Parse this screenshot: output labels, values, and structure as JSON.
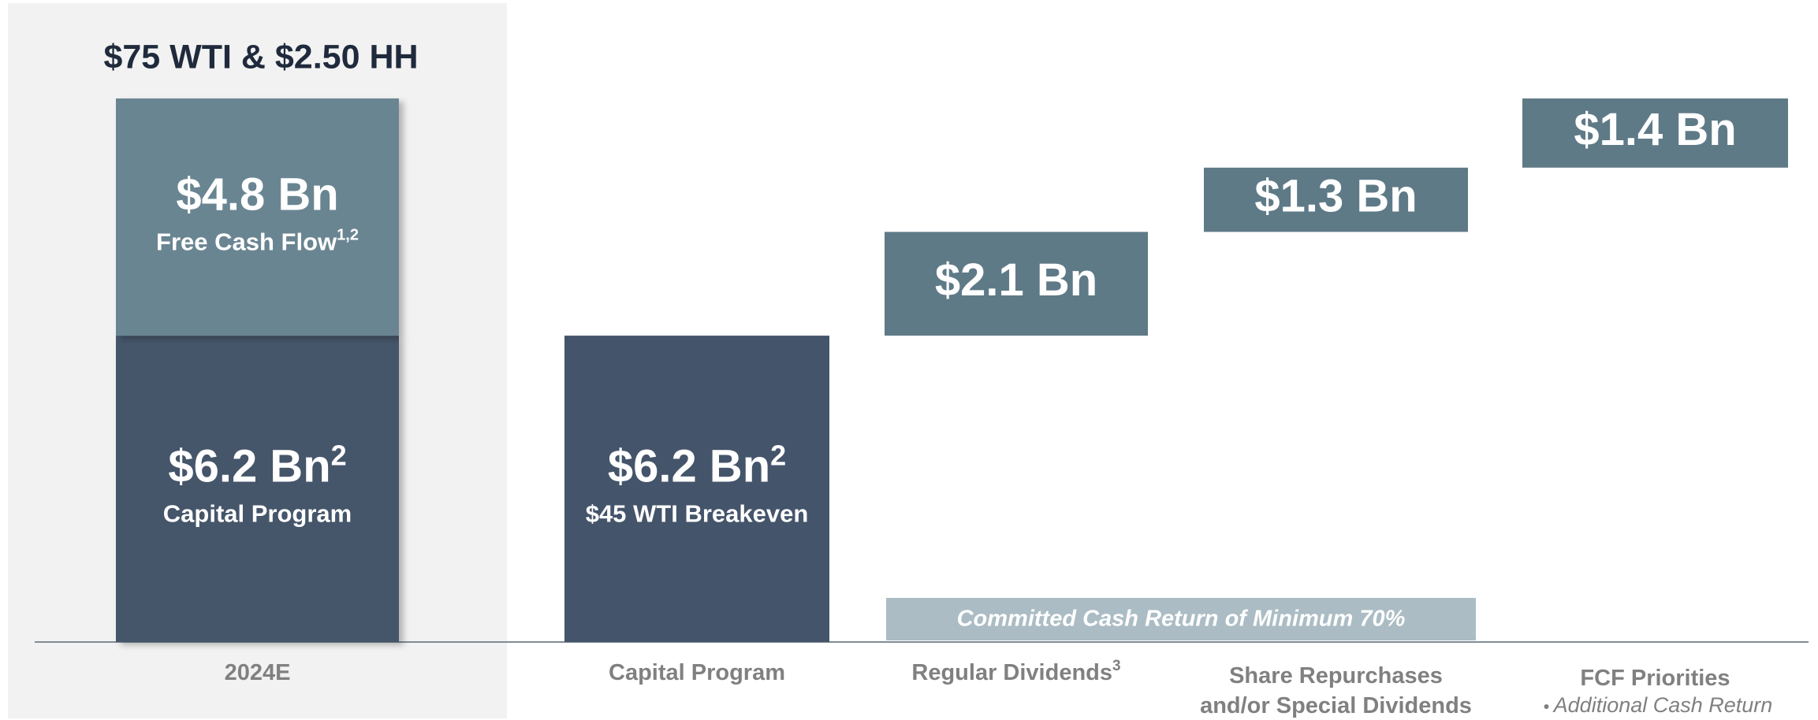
{
  "chart_data": {
    "type": "waterfall",
    "title": "$75 WTI & $2.50 HH",
    "annotation": "Committed Cash Return of Minimum 70%",
    "annotation_color": "#abbcc4",
    "bars": [
      {
        "category": [
          "2024E"
        ],
        "segments": [
          {
            "value": 6.2,
            "value_label": "$6.2 Bn",
            "note": "2",
            "caption": "Capital Program",
            "color": "#44546a"
          },
          {
            "value": 4.8,
            "value_label": "$4.8 Bn",
            "caption": "Free Cash Flow",
            "caption_note": "1,2",
            "color": "#6a8592"
          }
        ]
      },
      {
        "category": [
          "Capital Program"
        ],
        "segments": [
          {
            "value": 6.2,
            "value_label": "$6.2 Bn",
            "note": "2",
            "caption": "$45 WTI Breakeven",
            "color": "#44546a"
          }
        ]
      },
      {
        "category": [
          "Regular Dividends"
        ],
        "category_note": "3",
        "floating": true,
        "segments": [
          {
            "value": 2.1,
            "value_label": "$2.1 Bn",
            "color": "#5f7a87"
          }
        ]
      },
      {
        "category": [
          "Share Repurchases",
          "and/or Special Dividends"
        ],
        "floating": true,
        "segments": [
          {
            "value": 1.3,
            "value_label": "$1.3 Bn",
            "color": "#5f7a87"
          }
        ]
      },
      {
        "category": [
          "FCF Priorities"
        ],
        "bullets": [
          "Additional Cash Return"
        ],
        "floating": true,
        "segments": [
          {
            "value": 1.4,
            "value_label": "$1.4 Bn",
            "color": "#5f7a87"
          }
        ]
      }
    ]
  }
}
